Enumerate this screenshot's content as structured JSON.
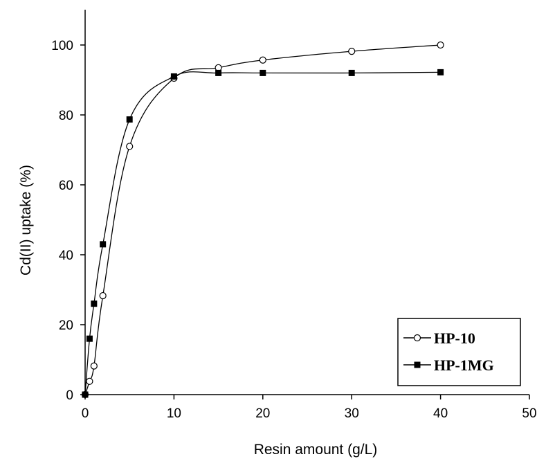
{
  "chart_data": {
    "type": "line",
    "xlabel": "Resin amount (g/L)",
    "ylabel": "Cd(II) uptake (%)",
    "xlim": [
      0,
      50
    ],
    "ylim": [
      0,
      100
    ],
    "xticks": [
      "0",
      "10",
      "20",
      "30",
      "40",
      "50"
    ],
    "yticks": [
      "0",
      "20",
      "40",
      "60",
      "80",
      "100"
    ],
    "grid": false,
    "legend_position": "bottom-right",
    "series": [
      {
        "name": "HP-10",
        "marker": "open-circle",
        "x": [
          0,
          0.5,
          1,
          2,
          5,
          10,
          15,
          20,
          30,
          40
        ],
        "y": [
          0,
          3.8,
          8.2,
          28.3,
          71,
          90.5,
          93.5,
          95.7,
          98.2,
          100
        ]
      },
      {
        "name": "HP-1MG",
        "marker": "filled-square",
        "x": [
          0,
          0.5,
          1,
          2,
          5,
          10,
          15,
          20,
          30,
          40
        ],
        "y": [
          0,
          16,
          26,
          43,
          78.7,
          91,
          92,
          92,
          92,
          92.2
        ]
      }
    ]
  }
}
